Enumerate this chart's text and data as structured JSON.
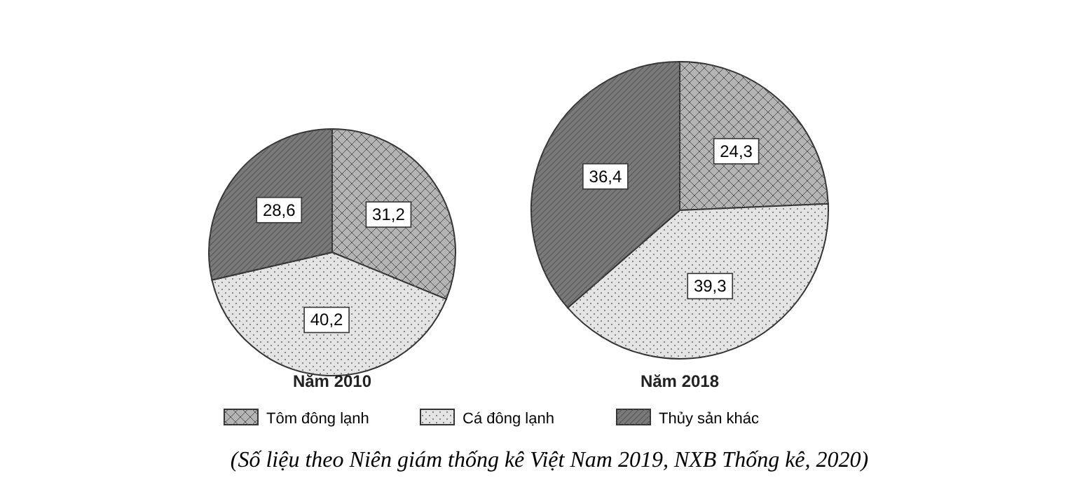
{
  "chart_data": [
    {
      "type": "pie",
      "title": "Năm 2010",
      "categories": [
        "Tôm đông lạnh",
        "Cá đông lạnh",
        "Thủy sản khác"
      ],
      "values": [
        31.2,
        40.2,
        28.6
      ],
      "value_labels": [
        "31,2",
        "40,2",
        "28,6"
      ],
      "colors": [
        "#b4b4b4",
        "#e4e4e4",
        "#7a7a7a"
      ],
      "legend": "bottom"
    },
    {
      "type": "pie",
      "title": "Năm 2018",
      "categories": [
        null,
        null,
        null
      ],
      "values": [
        24.3,
        39.3,
        36.4
      ],
      "value_labels": [
        "24,3",
        "39,3",
        "36,4"
      ],
      "colors": [
        "#b4b4b4",
        "#e4e4e4",
        "#7a7a7a"
      ],
      "annotations": [
        "(Số liệu theo Niên giám thống kê Việt Nam 2019, NXB Thống kê, 2020)"
      ]
    }
  ]
}
